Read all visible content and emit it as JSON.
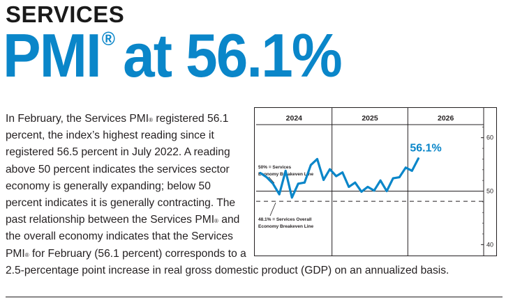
{
  "header": {
    "kicker": "SERVICES",
    "headline_pre": "PMI",
    "headline_reg": "®",
    "headline_post": "at 56.1%"
  },
  "body": {
    "s1": "In February, the Services PMI",
    "s2": " registered 56.1 percent, the index’s highest reading since it registered 56.5 percent in July 2022. A reading above 50 percent indicates the services sector economy is generally expanding; below 50 percent indicates it is generally contracting. The past relationship between the Services PMI",
    "s3": " and the overall economy indicates that the Services PMI",
    "s4": " for February (56.1 percent) corresponds to a 2.5-percentage point increase in real gross domestic product (GDP) on an annualized basis.",
    "reg": "®"
  },
  "colors": {
    "accent": "#0a86c9",
    "text": "#231f20"
  },
  "chart_data": {
    "type": "line",
    "title": "",
    "xlabel": "",
    "ylabel": "",
    "years": [
      "2024",
      "2025",
      "2026"
    ],
    "y_ticks": [
      "60",
      "50",
      "40"
    ],
    "ylim": [
      39,
      64
    ],
    "series": [
      {
        "name": "Services PMI",
        "months": [
          "Jan 2024",
          "Feb 2024",
          "Mar 2024",
          "Apr 2024",
          "May 2024",
          "Jun 2024",
          "Jul 2024",
          "Aug 2024",
          "Sep 2024",
          "Oct 2024",
          "Nov 2024",
          "Dec 2024",
          "Jan 2025",
          "Feb 2025",
          "Mar 2025",
          "Apr 2025",
          "May 2025",
          "Jun 2025",
          "Jul 2025",
          "Aug 2025",
          "Sep 2025",
          "Oct 2025",
          "Nov 2025",
          "Dec 2025",
          "Jan 2026",
          "Feb 2026"
        ],
        "values": [
          53.4,
          52.6,
          51.4,
          49.4,
          53.8,
          48.8,
          51.4,
          51.6,
          54.9,
          56.0,
          52.1,
          54.1,
          52.8,
          53.5,
          50.8,
          51.6,
          49.9,
          50.8,
          50.1,
          52.0,
          50.0,
          52.4,
          52.6,
          54.4,
          53.8,
          56.1
        ],
        "end_label": "56.1%"
      }
    ],
    "reference_lines": [
      {
        "value": 50,
        "label_1": "50% = Services",
        "label_2": "Economy Breakeven Line",
        "style": "solid"
      },
      {
        "value": 48.1,
        "label_1": "48.1% = Services Overall",
        "label_2": "Economy Breakeven Line",
        "style": "dashed"
      }
    ]
  }
}
